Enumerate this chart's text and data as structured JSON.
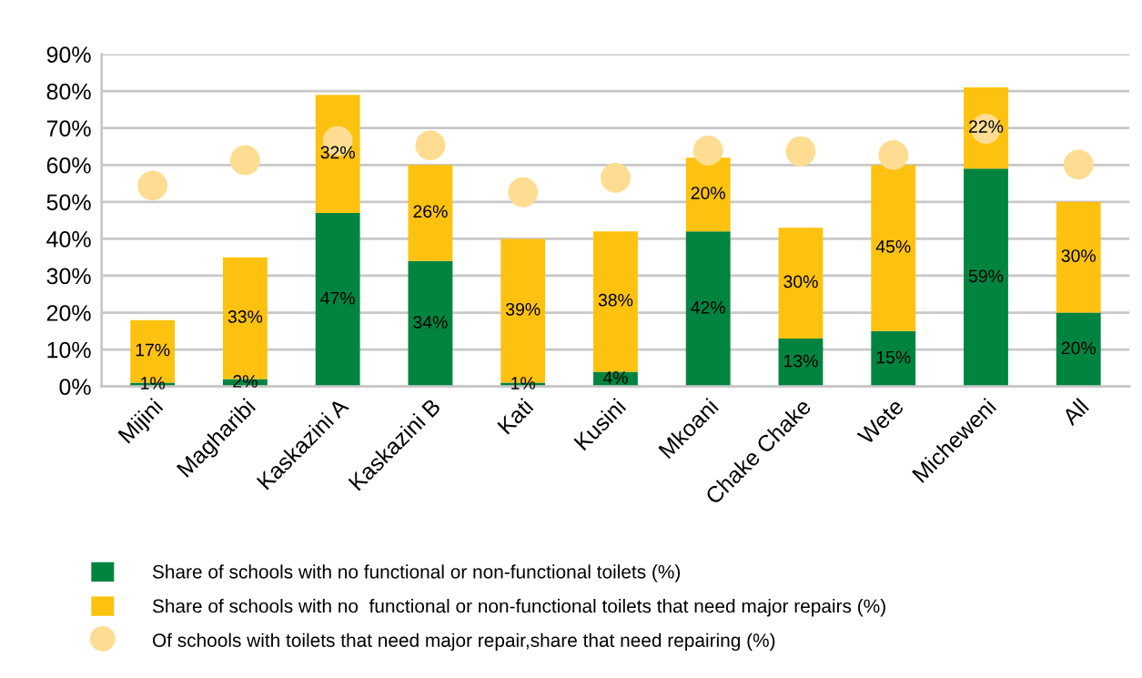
{
  "chart_data": {
    "type": "bar",
    "stacked": true,
    "categories": [
      "Mijini",
      "Magharibi",
      "Kaskazini A",
      "Kaskazini B",
      "Kati",
      "Kusini",
      "Mkoani",
      "Chake Chake",
      "Wete",
      "Micheweni",
      "All"
    ],
    "series": [
      {
        "name": "Share of schools with no functional or non-functional toilets (%)",
        "color": "#00843f",
        "values": [
          1,
          2,
          47,
          34,
          1,
          4,
          42,
          13,
          15,
          59,
          20
        ],
        "value_labels": [
          "1%",
          "2%",
          "47%",
          "34%",
          "1%",
          "4%",
          "42%",
          "13%",
          "15%",
          "59%",
          "20%"
        ]
      },
      {
        "name": "Share of schools with no  functional or non-functional toilets that need major repairs (%)",
        "color": "#fdc210",
        "values": [
          17,
          33,
          32,
          26,
          39,
          38,
          20,
          30,
          45,
          22,
          30
        ],
        "value_labels": [
          "17%",
          "33%",
          "32%",
          "26%",
          "39%",
          "38%",
          "20%",
          "30%",
          "45%",
          "22%",
          "30%"
        ]
      },
      {
        "name": "Of schools with toilets that need major repair,share that need repairing (%)",
        "type": "scatter",
        "marker": "circle",
        "color": "#fedd92",
        "values": [
          54.4,
          61.3,
          66.5,
          65.3,
          52.6,
          56.5,
          63.9,
          63.7,
          62.7,
          69.8,
          60.1
        ]
      }
    ],
    "ylim": [
      0,
      90
    ],
    "yticks": [
      {
        "value": 0,
        "label": "0%"
      },
      {
        "value": 10,
        "label": "10%"
      },
      {
        "value": 20,
        "label": "20%"
      },
      {
        "value": 30,
        "label": "30%"
      },
      {
        "value": 40,
        "label": "40%"
      },
      {
        "value": 50,
        "label": "50%"
      },
      {
        "value": 60,
        "label": "60%"
      },
      {
        "value": 70,
        "label": "70%"
      },
      {
        "value": 80,
        "label": "80%"
      },
      {
        "value": 90,
        "label": "90%"
      }
    ],
    "grid": "y",
    "legend": "bottom"
  }
}
